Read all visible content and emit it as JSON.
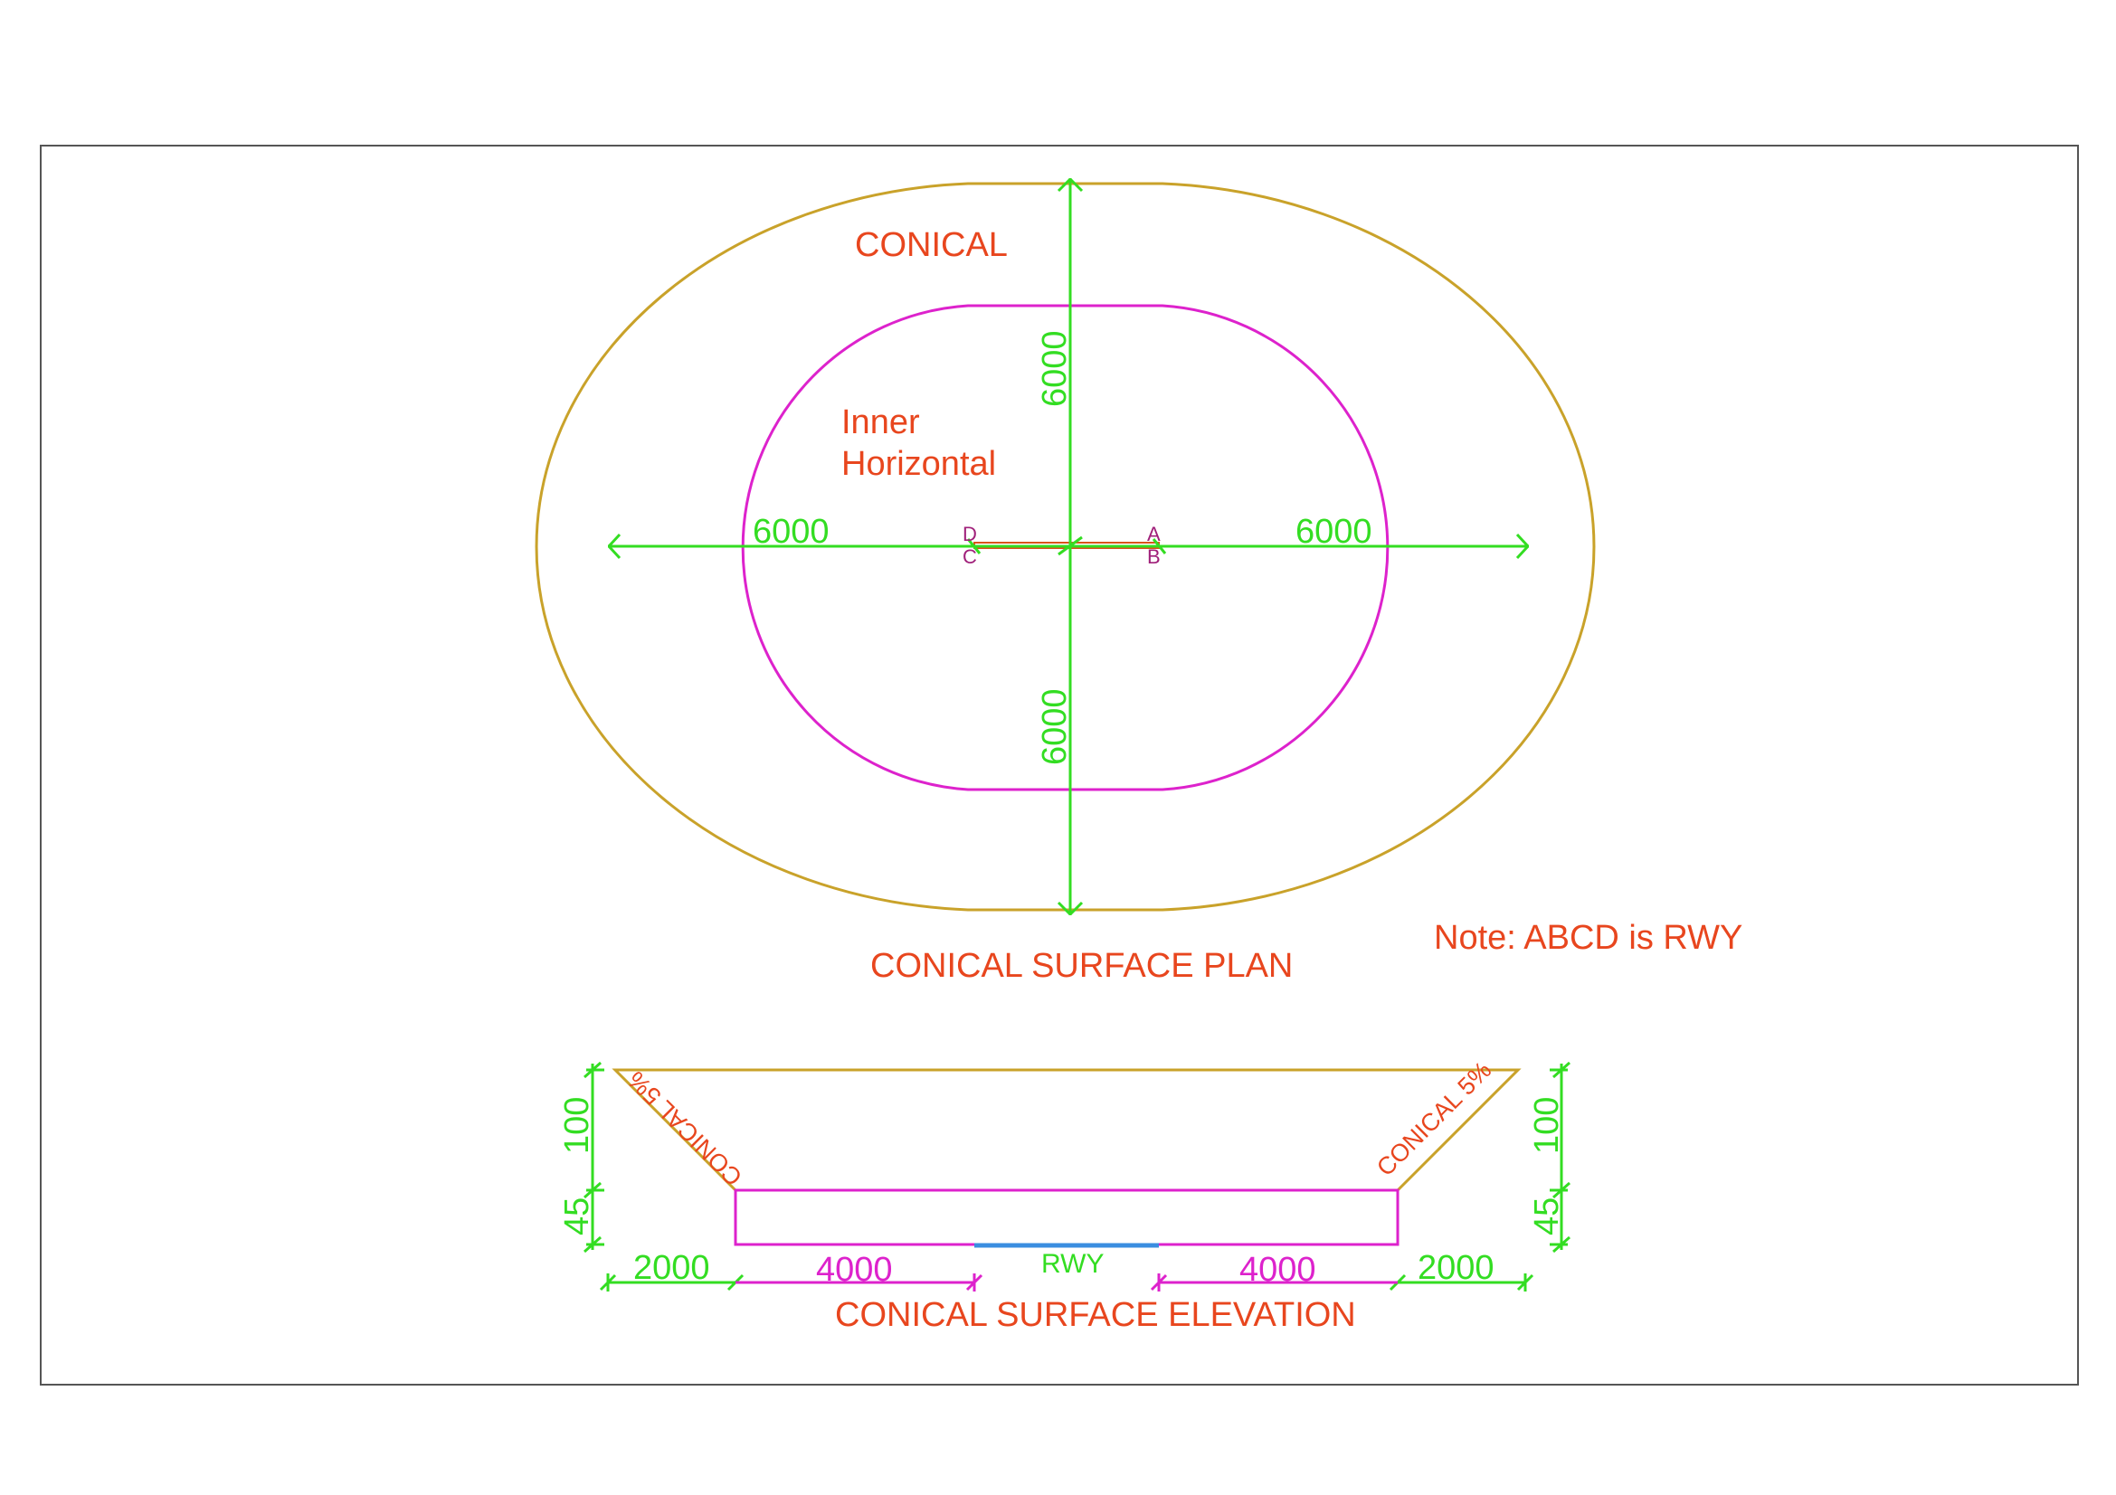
{
  "colors": {
    "label": "#e8461e",
    "dimension": "#33dd22",
    "inner": "#dd22cc",
    "conical": "#c9a22a",
    "runway": "#3a8ee0",
    "frame": "#555555",
    "runway_point": "#a0207a"
  },
  "plan": {
    "conical_label": "CONICAL",
    "inner_label_line1": "Inner",
    "inner_label_line2": "Horizontal",
    "dim_top": "6000",
    "dim_bottom": "6000",
    "dim_left": "6000",
    "dim_right": "6000",
    "point_a": "A",
    "point_b": "B",
    "point_c": "C",
    "point_d": "D",
    "title": "CONICAL SURFACE PLAN",
    "note": "Note: ABCD is RWY"
  },
  "elevation": {
    "slope_left": "CONICAL 5%",
    "slope_right": "CONICAL 5%",
    "dim_height_left_upper": "100",
    "dim_height_left_lower": "45",
    "dim_height_right_upper": "100",
    "dim_height_right_lower": "45",
    "dim_outer_left": "2000",
    "dim_inner_left": "4000",
    "runway_label": "RWY",
    "dim_inner_right": "4000",
    "dim_outer_right": "2000",
    "title": "CONICAL SURFACE ELEVATION"
  }
}
